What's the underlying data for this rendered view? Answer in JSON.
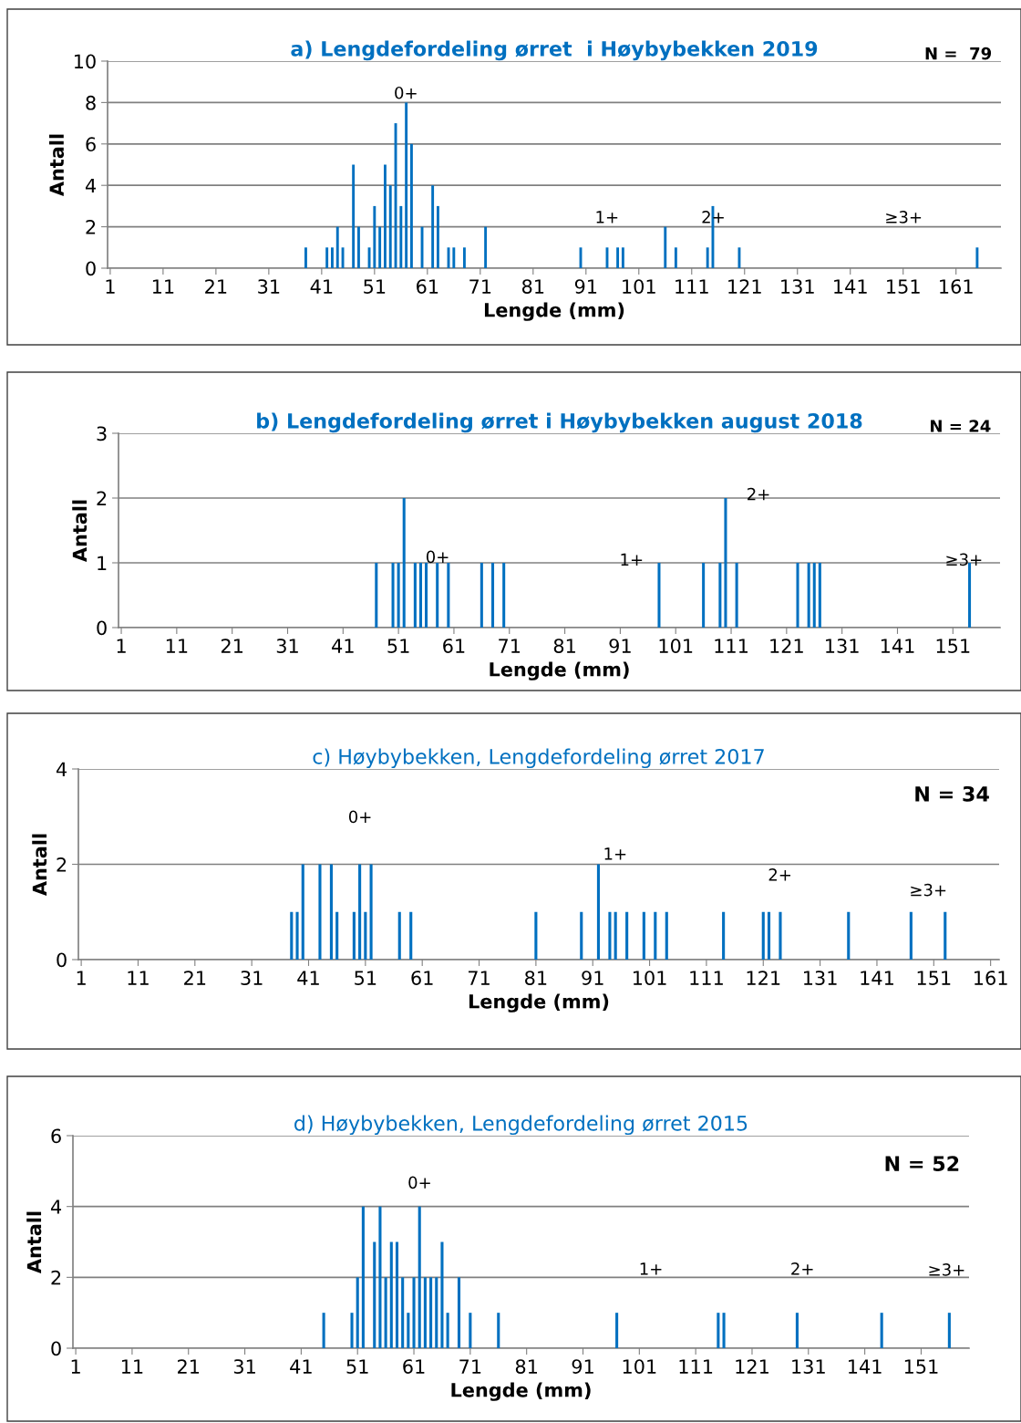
{
  "chart_data": [
    {
      "type": "bar",
      "title": "a) Lengdefordeling ørret  i Høybybekken 2019",
      "xlabel": "Lengde (mm)",
      "ylabel": "Antall",
      "color": "#0070c0",
      "grid": "y",
      "x": [
        38,
        42,
        43,
        44,
        45,
        47,
        48,
        50,
        51,
        52,
        53,
        54,
        55,
        56,
        57,
        58,
        60,
        62,
        63,
        65,
        66,
        68,
        72,
        90,
        95,
        97,
        98,
        106,
        108,
        114,
        115,
        120,
        165
      ],
      "values": [
        1,
        1,
        1,
        2,
        1,
        5,
        2,
        1,
        3,
        2,
        5,
        4,
        7,
        3,
        8,
        6,
        2,
        4,
        3,
        1,
        1,
        1,
        2,
        1,
        1,
        1,
        1,
        2,
        1,
        1,
        3,
        1,
        1
      ],
      "xlim": [
        0.5,
        169.5
      ],
      "xticks": [
        1,
        11,
        21,
        31,
        41,
        51,
        61,
        71,
        81,
        91,
        101,
        111,
        121,
        131,
        141,
        151,
        161
      ],
      "ylim": [
        0,
        10
      ],
      "yticks": [
        0,
        2,
        4,
        6,
        8,
        10
      ],
      "annotations": [
        "N =  79",
        "0+",
        "1+",
        "2+",
        "≥3+"
      ]
    },
    {
      "type": "bar",
      "title": "b) Lengdefordeling ørret i Høybybekken august 2018",
      "xlabel": "Lengde (mm)",
      "ylabel": "Antall",
      "color": "#0070c0",
      "grid": "y",
      "x": [
        47,
        50,
        51,
        52,
        54,
        55,
        56,
        58,
        60,
        66,
        68,
        70,
        98,
        106,
        109,
        110,
        112,
        123,
        125,
        126,
        127,
        154
      ],
      "values": [
        1,
        1,
        1,
        2,
        1,
        1,
        1,
        1,
        1,
        1,
        1,
        1,
        1,
        1,
        1,
        2,
        1,
        1,
        1,
        1,
        1,
        1
      ],
      "xlim": [
        0.5,
        159.5
      ],
      "xticks": [
        1,
        11,
        21,
        31,
        41,
        51,
        61,
        71,
        81,
        91,
        101,
        111,
        121,
        131,
        141,
        151
      ],
      "ylim": [
        0,
        3
      ],
      "yticks": [
        0,
        1,
        2,
        3
      ],
      "annotations": [
        "N = 24",
        "0+",
        "1+",
        "2+",
        "≥3+"
      ]
    },
    {
      "type": "bar",
      "title": "c) Høybybekken, Lengdefordeling ørret 2017",
      "xlabel": "Lengde (mm)",
      "ylabel": "Antall",
      "color": "#0070c0",
      "grid": "y",
      "x": [
        38,
        39,
        40,
        43,
        45,
        46,
        49,
        50,
        51,
        52,
        57,
        59,
        81,
        89,
        92,
        94,
        95,
        97,
        100,
        102,
        104,
        114,
        121,
        122,
        124,
        136,
        147,
        153
      ],
      "values": [
        1,
        1,
        2,
        2,
        2,
        1,
        1,
        2,
        1,
        2,
        1,
        1,
        1,
        1,
        2,
        1,
        1,
        1,
        1,
        1,
        1,
        1,
        1,
        1,
        1,
        1,
        1,
        1
      ],
      "xlim": [
        0.5,
        162.5
      ],
      "xticks": [
        1,
        11,
        21,
        31,
        41,
        51,
        61,
        71,
        81,
        91,
        101,
        111,
        121,
        131,
        141,
        151,
        161
      ],
      "ylim": [
        0,
        4
      ],
      "yticks": [
        0,
        2,
        4
      ],
      "annotations": [
        "N = 34",
        "0+",
        "1+",
        "2+",
        "≥3+"
      ]
    },
    {
      "type": "bar",
      "title": "d) Høybybekken, Lengdefordeling ørret 2015",
      "xlabel": "Lengde (mm)",
      "ylabel": "Antall",
      "color": "#0070c0",
      "grid": "y",
      "x": [
        45,
        50,
        51,
        52,
        54,
        55,
        56,
        57,
        58,
        59,
        60,
        61,
        62,
        63,
        64,
        65,
        66,
        67,
        69,
        71,
        76,
        97,
        115,
        116,
        129,
        144,
        156
      ],
      "values": [
        1,
        1,
        2,
        4,
        3,
        4,
        2,
        3,
        3,
        2,
        1,
        2,
        4,
        2,
        2,
        2,
        3,
        1,
        2,
        1,
        1,
        1,
        1,
        1,
        1,
        1,
        1
      ],
      "xlim": [
        0.5,
        159.5
      ],
      "xticks": [
        1,
        11,
        21,
        31,
        41,
        51,
        61,
        71,
        81,
        91,
        101,
        111,
        121,
        131,
        141,
        151
      ],
      "ylim": [
        0,
        6
      ],
      "yticks": [
        0,
        2,
        4,
        6
      ],
      "annotations": [
        "N = 52",
        "0+",
        "1+",
        "2+",
        "≥3+"
      ]
    }
  ]
}
